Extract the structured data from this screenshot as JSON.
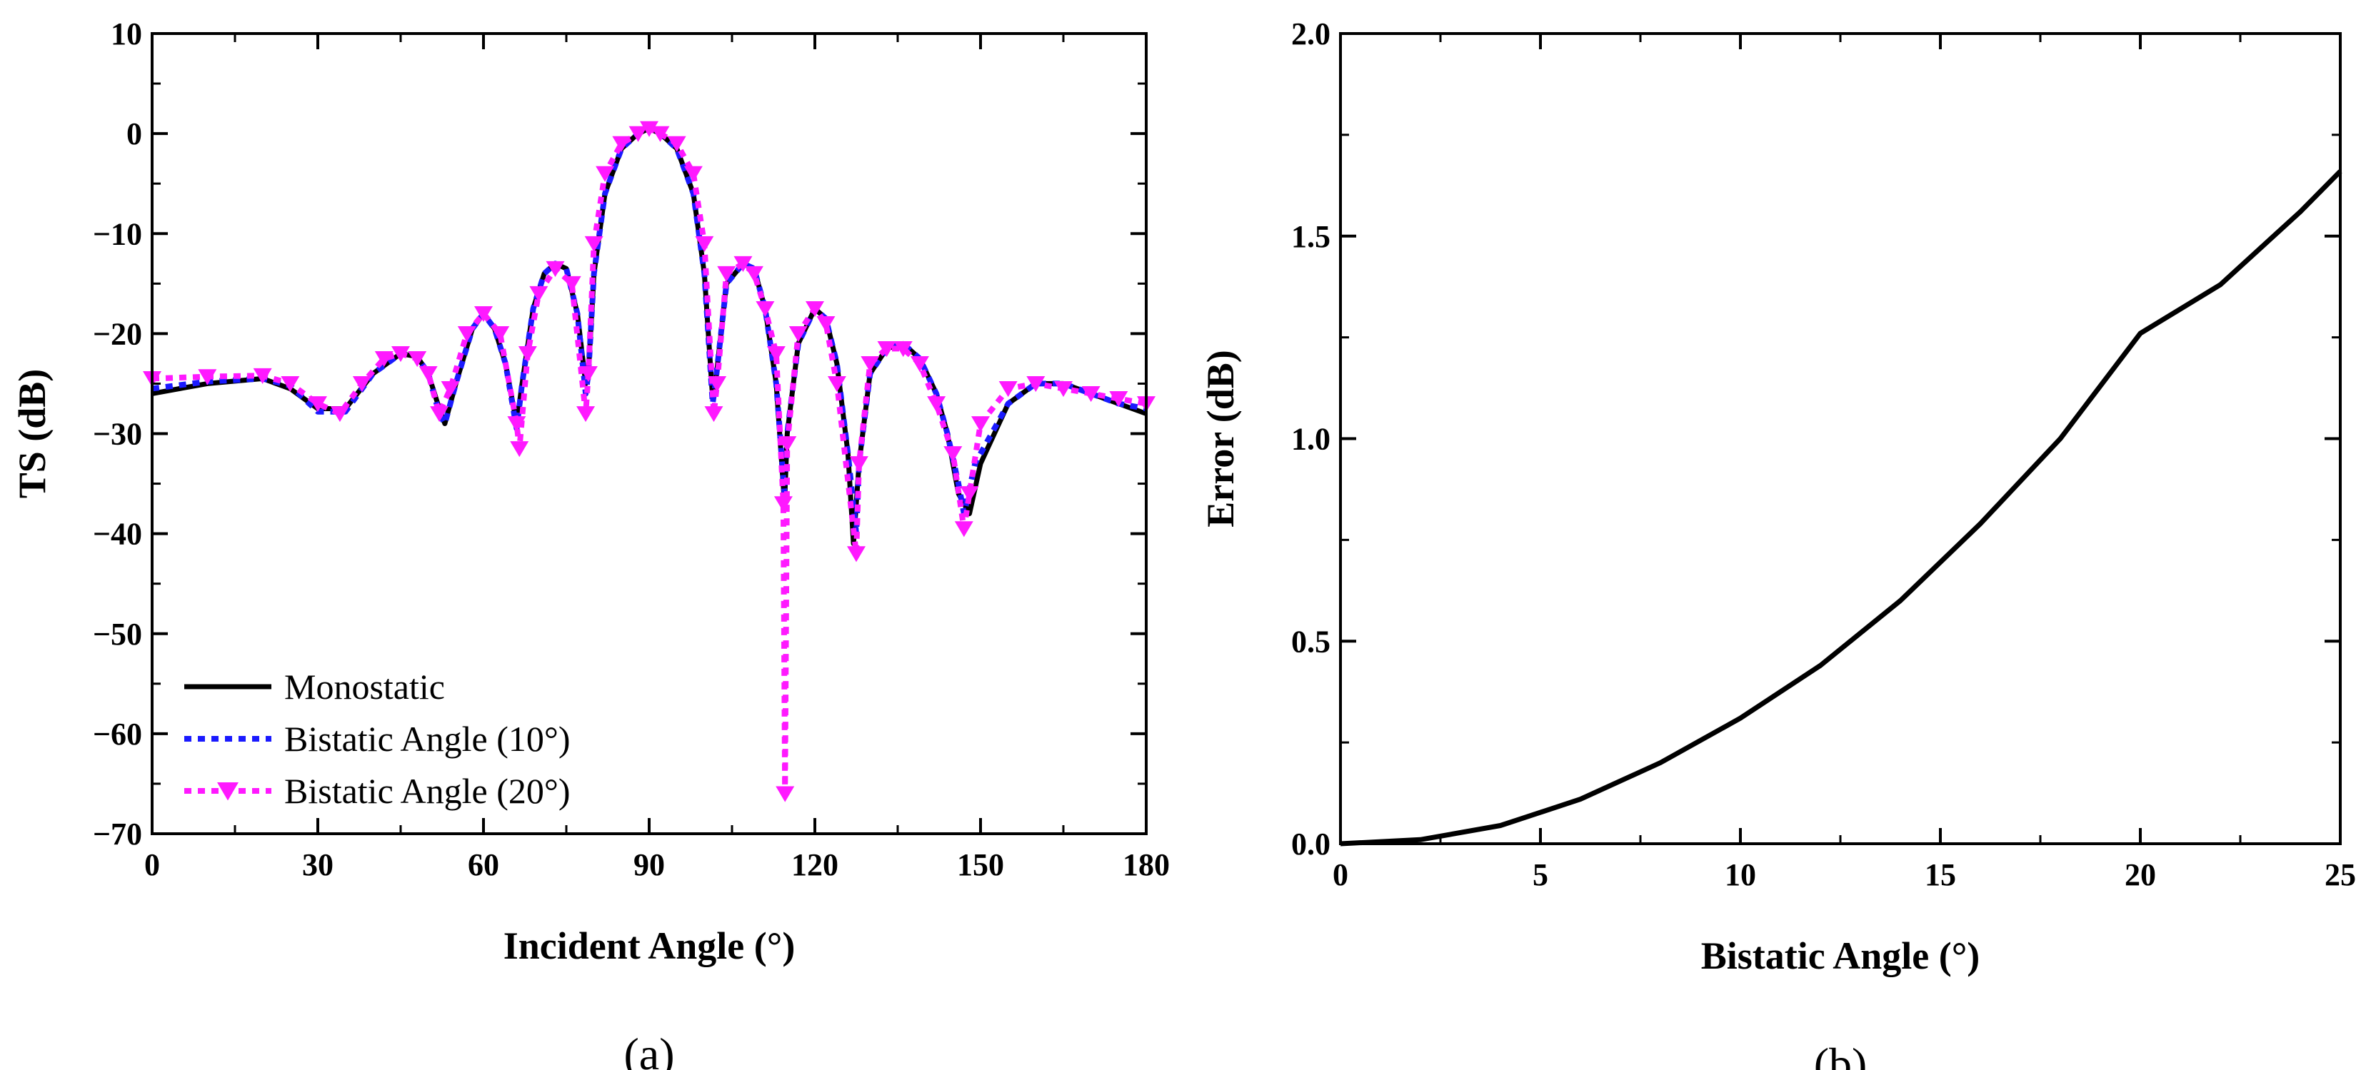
{
  "chart_data": [
    {
      "type": "line",
      "panel_label": "(a)",
      "xlabel": "Incident Angle (°)",
      "ylabel": "TS (dB)",
      "xlim": [
        0,
        180
      ],
      "ylim": [
        -70,
        10
      ],
      "xticks": [
        0,
        30,
        60,
        90,
        120,
        150,
        180
      ],
      "yticks": [
        10,
        0,
        -10,
        -20,
        -30,
        -40,
        -50,
        -60,
        -70
      ],
      "ytick_labels": [
        "10",
        "0",
        "−10",
        "−20",
        "−30",
        "−40",
        "−50",
        "−60",
        "−70"
      ],
      "legend_position": "bottom-left",
      "series": [
        {
          "name": "Monostatic",
          "color": "#000000",
          "style": "solid",
          "x": [
            0,
            10,
            20,
            25,
            30,
            35,
            40,
            45,
            48,
            50,
            52,
            53,
            55,
            58,
            60,
            62,
            64,
            66,
            67,
            69,
            71,
            73,
            75,
            77,
            78.5,
            79,
            80,
            82,
            85,
            88,
            90,
            92,
            95,
            98,
            100,
            101.5,
            102,
            104,
            107,
            109,
            111,
            113,
            114.5,
            115,
            117,
            120,
            122,
            124,
            126,
            127,
            128,
            130,
            133,
            136,
            139,
            142,
            144,
            146,
            148,
            150,
            155,
            160,
            165,
            170,
            175,
            180
          ],
          "y": [
            -26,
            -25,
            -24.5,
            -25.5,
            -27.5,
            -27.5,
            -24,
            -22,
            -22.3,
            -24,
            -27.5,
            -29,
            -25,
            -19.5,
            -18,
            -19.5,
            -23,
            -29,
            -25,
            -17.5,
            -14,
            -13,
            -13.5,
            -18,
            -25,
            -24,
            -14,
            -6,
            -1.5,
            0,
            0.5,
            0,
            -1.5,
            -6,
            -14,
            -26.5,
            -25,
            -15,
            -13,
            -13.5,
            -17.5,
            -25,
            -37,
            -30,
            -21,
            -17.5,
            -18.5,
            -23,
            -32,
            -41,
            -33,
            -24,
            -21.5,
            -21,
            -22.5,
            -26,
            -30,
            -36,
            -38,
            -33,
            -27,
            -25,
            -25,
            -26,
            -27,
            -28
          ]
        },
        {
          "name": "Bistatic Angle (10°)",
          "color": "#1a1aff",
          "style": "dotted",
          "x": [
            0,
            10,
            20,
            25,
            30,
            35,
            40,
            45,
            48,
            50,
            52,
            53,
            55,
            58,
            60,
            62,
            64,
            66,
            67,
            69,
            71,
            73,
            75,
            77,
            78.5,
            79,
            80,
            82,
            85,
            88,
            90,
            92,
            95,
            98,
            100,
            101.5,
            102,
            104,
            107,
            109,
            111,
            113,
            114.5,
            115,
            117,
            120,
            122,
            124,
            126,
            127.5,
            128,
            130,
            133,
            136,
            139,
            142,
            144,
            146,
            147,
            149,
            155,
            160,
            165,
            170,
            175,
            180
          ],
          "y": [
            -25.5,
            -24.8,
            -24.5,
            -25.2,
            -27.8,
            -27.8,
            -24,
            -22,
            -22.3,
            -24,
            -28,
            -29,
            -25,
            -19.5,
            -18,
            -19.5,
            -23,
            -29.5,
            -25,
            -17.5,
            -14,
            -13,
            -13.5,
            -18,
            -26,
            -24,
            -14,
            -6,
            -1.5,
            0,
            0.5,
            0,
            -1.5,
            -6,
            -14,
            -27,
            -25,
            -15,
            -13,
            -13.5,
            -17.5,
            -25,
            -36,
            -30,
            -21,
            -17.5,
            -18.5,
            -23,
            -32,
            -40,
            -33,
            -24,
            -21.5,
            -21,
            -22.5,
            -26,
            -30,
            -35,
            -38,
            -33,
            -27,
            -25,
            -25,
            -26,
            -27,
            -27.5
          ]
        },
        {
          "name": "Bistatic Angle (20°)",
          "color": "#ff19ff",
          "style": "dotted-triangle",
          "x": [
            0,
            10,
            20,
            25,
            30,
            34,
            38,
            42,
            45,
            48,
            50,
            52,
            54,
            57,
            60,
            63,
            66,
            66.5,
            68,
            70,
            73,
            76,
            78.5,
            79,
            80,
            82,
            85,
            88,
            90,
            92,
            95,
            98,
            100,
            101.7,
            102.3,
            104,
            107,
            109,
            111,
            113,
            114.3,
            114.6,
            115,
            117,
            120,
            122,
            124,
            127.5,
            128,
            130,
            133,
            136,
            139,
            142,
            145,
            147,
            148,
            150,
            155,
            160,
            165,
            170,
            175,
            180
          ],
          "y": [
            -24.5,
            -24.3,
            -24.2,
            -25,
            -27,
            -28,
            -25,
            -22.5,
            -22,
            -22.5,
            -24,
            -28,
            -25.5,
            -20,
            -18,
            -20,
            -29,
            -31.5,
            -22,
            -16,
            -13.5,
            -15,
            -28,
            -24,
            -11,
            -4,
            -1,
            0,
            0.5,
            0,
            -1,
            -4,
            -11,
            -28,
            -25,
            -14,
            -13,
            -14,
            -17.5,
            -22,
            -37,
            -66,
            -31,
            -20,
            -17.5,
            -19,
            -25,
            -42,
            -33,
            -23,
            -21.5,
            -21.5,
            -23,
            -27,
            -32,
            -39.5,
            -36,
            -29,
            -25.5,
            -25,
            -25.5,
            -26,
            -26.5,
            -27
          ]
        }
      ]
    },
    {
      "type": "line",
      "panel_label": "(b)",
      "xlabel": "Bistatic Angle (°)",
      "ylabel": "Error  (dB)",
      "xlim": [
        0,
        25
      ],
      "ylim": [
        0.0,
        2.0
      ],
      "xticks": [
        0,
        5,
        10,
        15,
        20,
        25
      ],
      "yticks": [
        0.0,
        0.5,
        1.0,
        1.5,
        2.0
      ],
      "ytick_labels": [
        "0.0",
        "0.5",
        "1.0",
        "1.5",
        "2.0"
      ],
      "series": [
        {
          "name": "Error",
          "color": "#000000",
          "style": "solid",
          "x": [
            0,
            2,
            4,
            6,
            8,
            10,
            12,
            14,
            16,
            18,
            20,
            22,
            24,
            25
          ],
          "y": [
            0.0,
            0.01,
            0.045,
            0.11,
            0.2,
            0.31,
            0.44,
            0.6,
            0.79,
            1.0,
            1.26,
            1.38,
            1.56,
            1.66
          ]
        }
      ]
    }
  ]
}
